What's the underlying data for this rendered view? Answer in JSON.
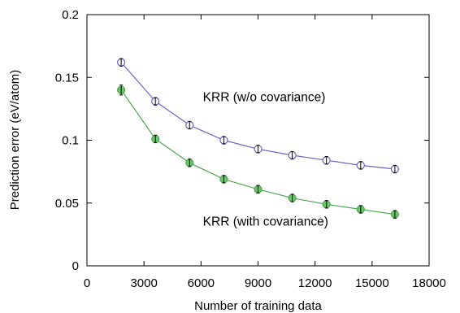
{
  "chart_data": {
    "type": "line",
    "xlabel": "Number of training data",
    "ylabel": "Prediction error (eV/atom)",
    "xlim": [
      0,
      18000
    ],
    "ylim": [
      0,
      0.2
    ],
    "xticks": [
      0,
      3000,
      6000,
      9000,
      12000,
      15000,
      18000
    ],
    "yticks": [
      0,
      0.05,
      0.1,
      0.15,
      0.2
    ],
    "xtick_labels": [
      "0",
      "3000",
      "6000",
      "9000",
      "12000",
      "15000",
      "18000"
    ],
    "ytick_labels": [
      "0",
      "0.05",
      "0.1",
      "0.15",
      "0.2"
    ],
    "grid": false,
    "x": [
      1800,
      3600,
      5400,
      7200,
      9000,
      10800,
      12600,
      14400,
      16200
    ],
    "series": [
      {
        "color": "#6b63c6",
        "marker_fill": "#ffffff",
        "values": [
          0.162,
          0.131,
          0.112,
          0.1,
          0.093,
          0.088,
          0.084,
          0.08,
          0.077
        ],
        "errors": [
          0.003,
          0.003,
          0.003,
          0.003,
          0.003,
          0.003,
          0.003,
          0.003,
          0.003
        ]
      },
      {
        "color": "#4fa84f",
        "marker_fill": "#6cc46c",
        "values": [
          0.14,
          0.101,
          0.082,
          0.069,
          0.061,
          0.054,
          0.049,
          0.045,
          0.041
        ],
        "errors": [
          0.004,
          0.003,
          0.003,
          0.003,
          0.003,
          0.003,
          0.003,
          0.003,
          0.003
        ]
      }
    ],
    "annotations": [
      {
        "text": "KRR (w/o covariance)",
        "x": 6100,
        "y": 0.131
      },
      {
        "text": "KRR (with covariance)",
        "x": 6100,
        "y": 0.032
      }
    ]
  }
}
